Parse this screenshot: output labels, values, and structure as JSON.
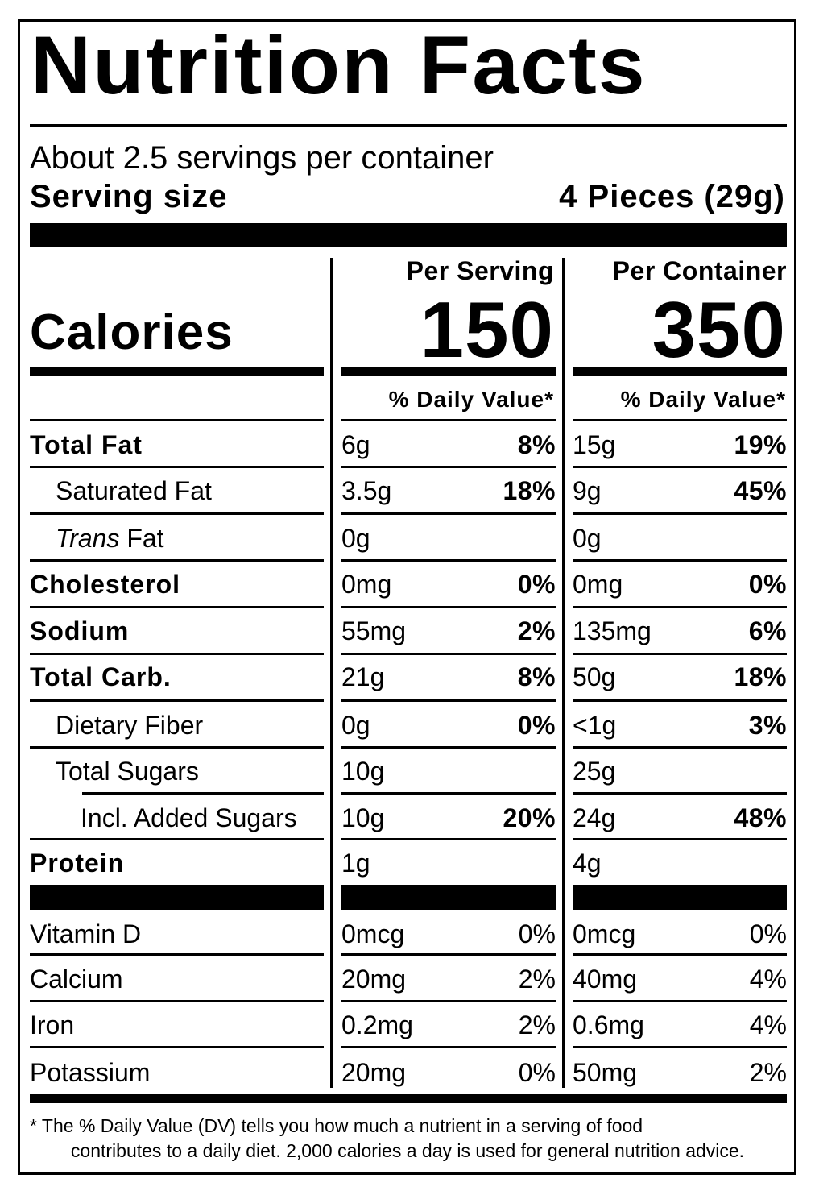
{
  "title": "Nutrition Facts",
  "servings_per_container": "About 2.5 servings per container",
  "serving_size_label": "Serving size",
  "serving_size_value": "4 Pieces (29g)",
  "columns": {
    "per_serving": "Per Serving",
    "per_container": "Per Container"
  },
  "calories": {
    "label": "Calories",
    "per_serving": "150",
    "per_container": "350"
  },
  "daily_value_header": "% Daily Value*",
  "nutrients": [
    {
      "name": "Total Fat",
      "serving_amount": "6g",
      "serving_dv": "8%",
      "container_amount": "15g",
      "container_dv": "19%"
    },
    {
      "name": "Saturated Fat",
      "serving_amount": "3.5g",
      "serving_dv": "18%",
      "container_amount": "9g",
      "container_dv": "45%"
    },
    {
      "name_italic": "Trans",
      "name_rest": " Fat",
      "serving_amount": "0g",
      "serving_dv": "",
      "container_amount": "0g",
      "container_dv": ""
    },
    {
      "name": "Cholesterol",
      "serving_amount": "0mg",
      "serving_dv": "0%",
      "container_amount": "0mg",
      "container_dv": "0%"
    },
    {
      "name": "Sodium",
      "serving_amount": "55mg",
      "serving_dv": "2%",
      "container_amount": "135mg",
      "container_dv": "6%"
    },
    {
      "name": "Total Carb.",
      "serving_amount": "21g",
      "serving_dv": "8%",
      "container_amount": "50g",
      "container_dv": "18%"
    },
    {
      "name": "Dietary Fiber",
      "serving_amount": "0g",
      "serving_dv": "0%",
      "container_amount": "<1g",
      "container_dv": "3%"
    },
    {
      "name": "Total Sugars",
      "serving_amount": "10g",
      "serving_dv": "",
      "container_amount": "25g",
      "container_dv": ""
    },
    {
      "name": "Incl. Added Sugars",
      "serving_amount": "10g",
      "serving_dv": "20%",
      "container_amount": "24g",
      "container_dv": "48%"
    },
    {
      "name": "Protein",
      "serving_amount": "1g",
      "serving_dv": "",
      "container_amount": "4g",
      "container_dv": ""
    }
  ],
  "vitamins": [
    {
      "name": "Vitamin D",
      "serving_amount": "0mcg",
      "serving_dv": "0%",
      "container_amount": "0mcg",
      "container_dv": "0%"
    },
    {
      "name": "Calcium",
      "serving_amount": "20mg",
      "serving_dv": "2%",
      "container_amount": "40mg",
      "container_dv": "4%"
    },
    {
      "name": "Iron",
      "serving_amount": "0.2mg",
      "serving_dv": "2%",
      "container_amount": "0.6mg",
      "container_dv": "4%"
    },
    {
      "name": "Potassium",
      "serving_amount": "20mg",
      "serving_dv": "0%",
      "container_amount": "50mg",
      "container_dv": "2%"
    }
  ],
  "footnote": {
    "line1": "* The % Daily Value (DV) tells you how much a nutrient in a serving of food",
    "line2": "contributes to a daily diet. 2,000 calories a day is used for general nutrition advice."
  }
}
